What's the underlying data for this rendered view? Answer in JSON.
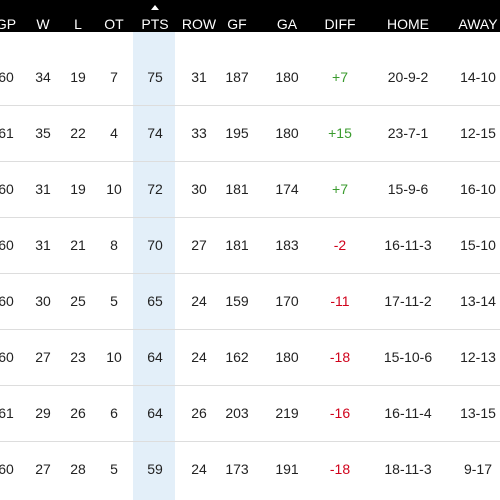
{
  "table": {
    "headers": [
      "GP",
      "W",
      "L",
      "OT",
      "PTS",
      "ROW",
      "GF",
      "GA",
      "DIFF",
      "HOME",
      "AWAY"
    ],
    "rows": [
      [
        "60",
        "34",
        "19",
        "7",
        "75",
        "31",
        "187",
        "180",
        "+7",
        "20-9-2",
        "14-10"
      ],
      [
        "61",
        "35",
        "22",
        "4",
        "74",
        "33",
        "195",
        "180",
        "+15",
        "23-7-1",
        "12-15"
      ],
      [
        "60",
        "31",
        "19",
        "10",
        "72",
        "30",
        "181",
        "174",
        "+7",
        "15-9-6",
        "16-10"
      ],
      [
        "60",
        "31",
        "21",
        "8",
        "70",
        "27",
        "181",
        "183",
        "-2",
        "16-11-3",
        "15-10"
      ],
      [
        "60",
        "30",
        "25",
        "5",
        "65",
        "24",
        "159",
        "170",
        "-11",
        "17-11-2",
        "13-14"
      ],
      [
        "60",
        "27",
        "23",
        "10",
        "64",
        "24",
        "162",
        "180",
        "-18",
        "15-10-6",
        "12-13"
      ],
      [
        "61",
        "29",
        "26",
        "6",
        "64",
        "26",
        "203",
        "219",
        "-16",
        "16-11-4",
        "13-15"
      ],
      [
        "60",
        "27",
        "28",
        "5",
        "59",
        "24",
        "173",
        "191",
        "-18",
        "18-11-3",
        "9-17"
      ]
    ]
  }
}
